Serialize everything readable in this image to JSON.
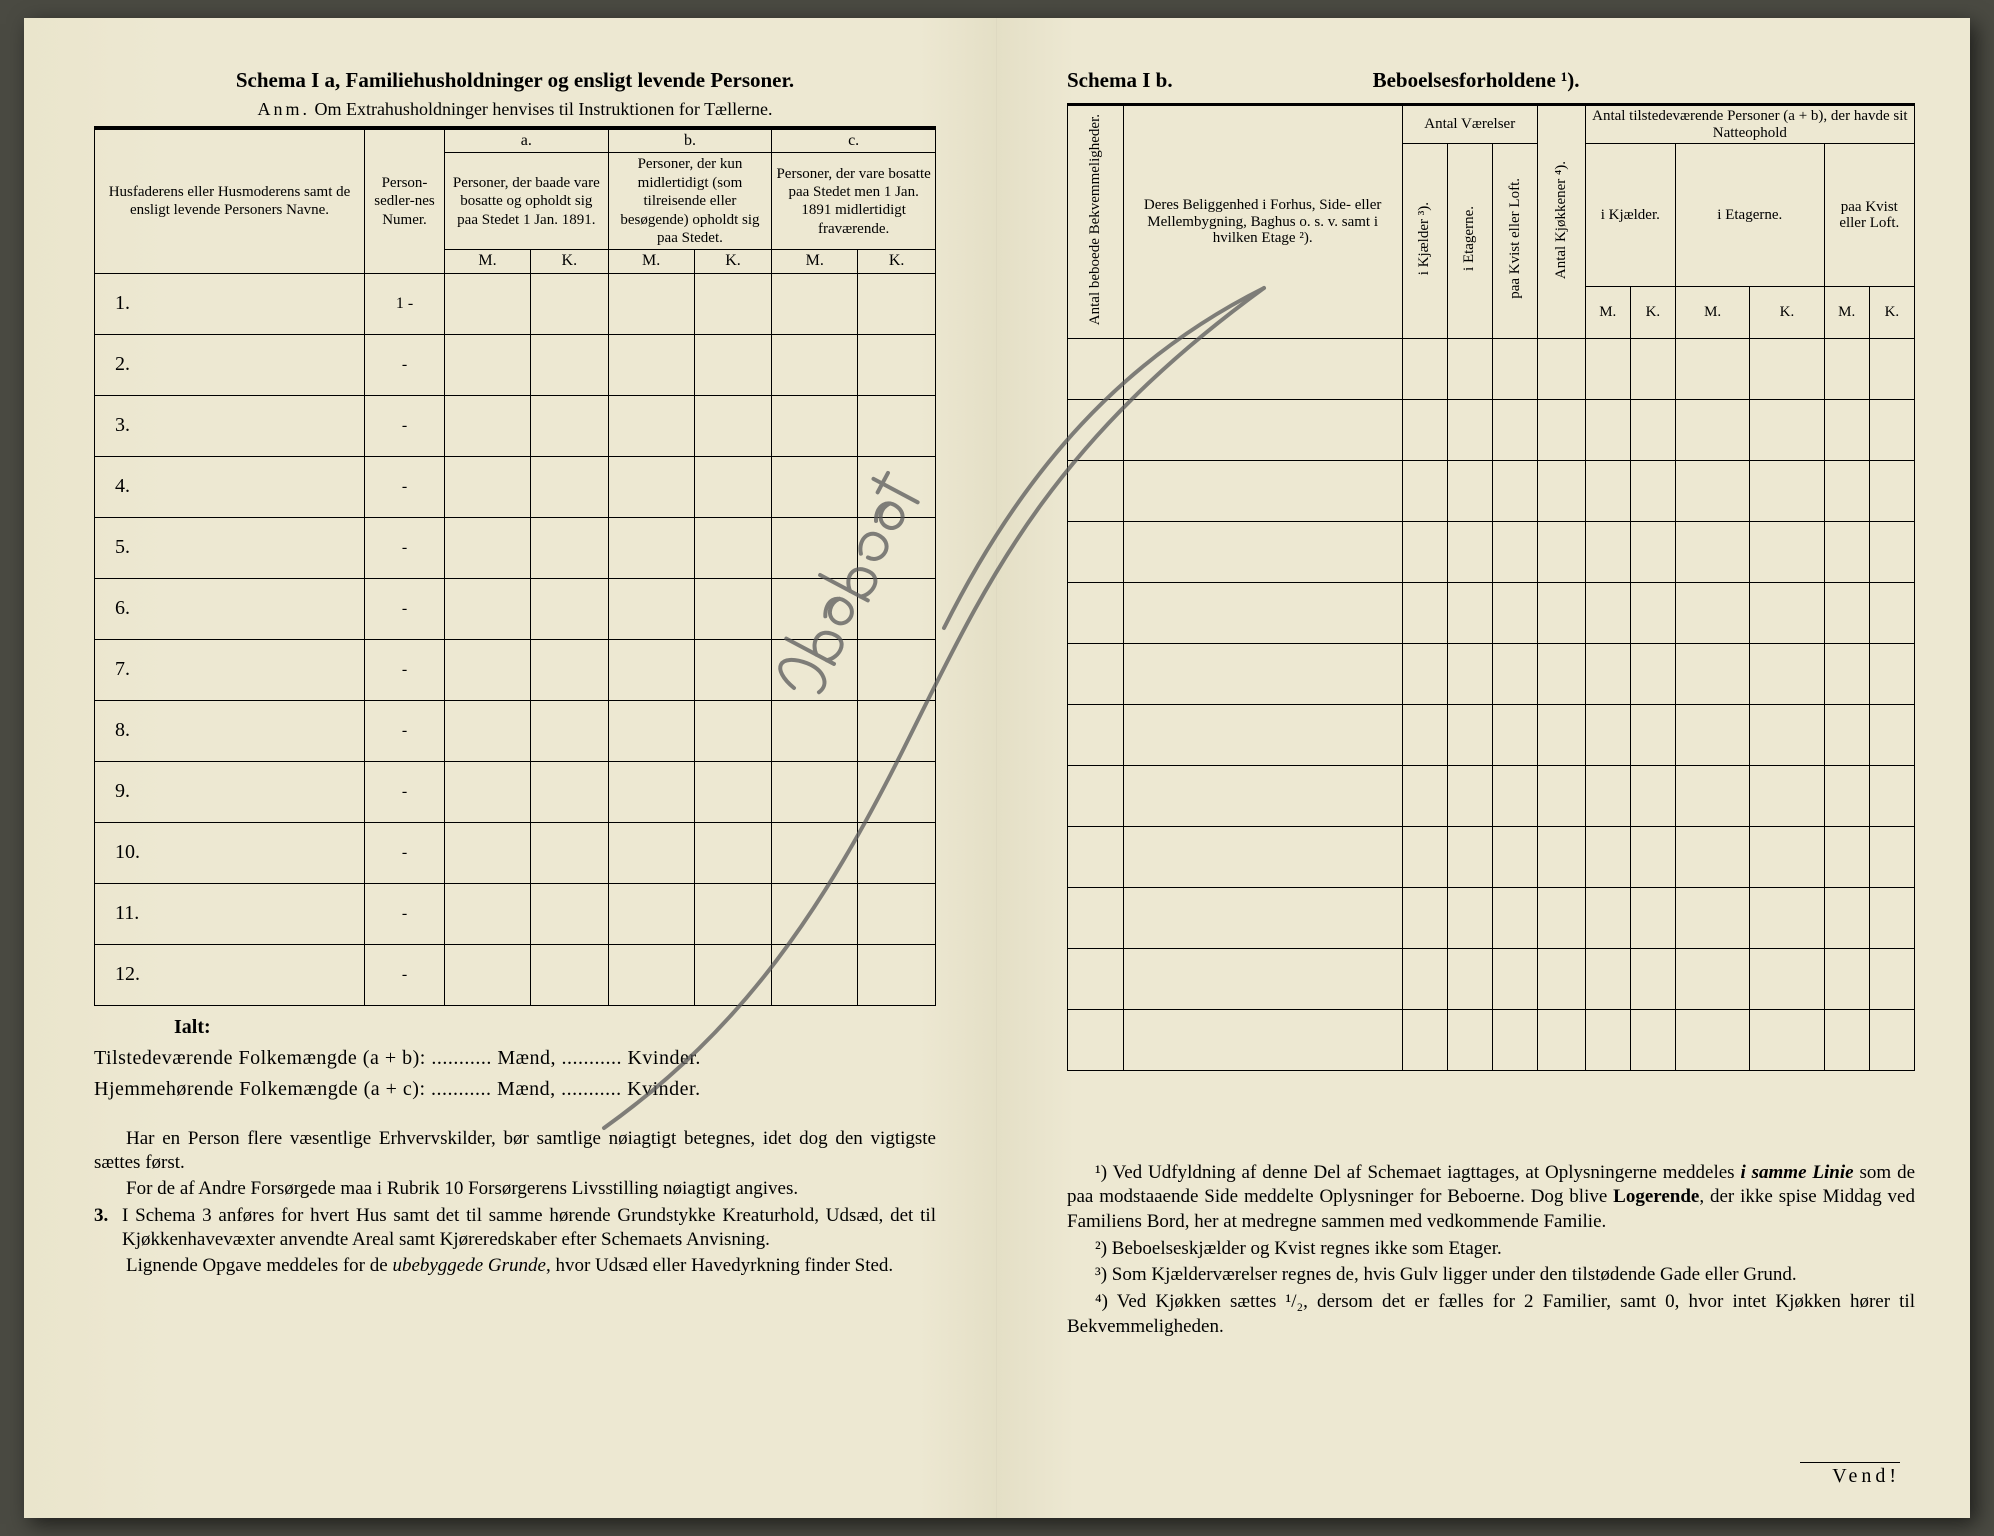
{
  "left": {
    "title_a": "Schema I a,",
    "title_b": "Familiehusholdninger og ensligt levende Personer.",
    "anm_label": "Anm.",
    "anm_text": "Om Extrahusholdninger henvises til Instruktionen for Tællerne.",
    "col_names": "Husfaderens eller Husmoderens samt de ensligt levende Personers Navne.",
    "col_personsedler": "Person-sedler-nes Numer.",
    "abc": {
      "a": "a.",
      "b": "b.",
      "c": "c."
    },
    "col_a": "Personer, der baade vare bosatte og opholdt sig paa Stedet 1 Jan. 1891.",
    "col_b": "Personer, der kun midlertidigt (som tilreisende eller besøgende) opholdt sig paa Stedet.",
    "col_c": "Personer, der vare bosatte paa Stedet men 1 Jan. 1891 midlertidigt fraværende.",
    "mk": {
      "m": "M.",
      "k": "K."
    },
    "rows": [
      "1.",
      "2.",
      "3.",
      "4.",
      "5.",
      "6.",
      "7.",
      "8.",
      "9.",
      "10.",
      "11.",
      "12."
    ],
    "personsedler_first": "1 -",
    "personsedler_rest": "-",
    "ialt": "Ialt:",
    "line1_a": "Tilstedeværende Folkemængde (a + b): ",
    "line1_b": " Mænd, ",
    "line1_c": " Kvinder.",
    "line2_a": "Hjemmehørende Folkemængde (a + c): ",
    "dots": "...........",
    "para1": "Har en Person flere væsentlige Erhvervskilder, bør samtlige nøiagtigt betegnes, idet dog den vigtigste sættes først.",
    "para2": "For de af Andre Forsørgede maa i Rubrik 10 Forsørgerens Livsstilling nøiagtigt angives.",
    "item3_num": "3.",
    "item3": "I Schema 3 anføres for hvert Hus samt det til samme hørende Grundstykke Kreaturhold, Udsæd, det til Kjøkkenhavevæxter anvendte Areal samt Kjøreredskaber efter Schemaets Anvisning.",
    "para4a": "Lignende Opgave meddeles for de ",
    "para4b": "ubebyggede Grunde",
    "para4c": ", hvor Udsæd eller Havedyrkning finder Sted."
  },
  "right": {
    "title_a": "Schema I b.",
    "title_b": "Beboelsesforholdene ¹).",
    "col_antal_beboede": "Antal beboede Bekvemmeligheder.",
    "col_beliggenhed": "Deres Beliggenhed i Forhus, Side- eller Mellembygning, Baghus o. s. v. samt i hvilken Etage ²).",
    "group_vaerelser": "Antal Værelser",
    "group_kjokken": "Antal Kjøkkener ⁴).",
    "group_natteophold_a": "Antal tilstedeværende Personer (a + b), der havde sit Natteophold",
    "v_kjaelder": "i Kjælder ³).",
    "v_etagerne": "i Etagerne.",
    "v_kvist": "paa Kvist eller Loft.",
    "n_kjaelder": "i Kjælder.",
    "n_etagerne": "i Etagerne.",
    "n_kvist": "paa Kvist eller Loft.",
    "mk": {
      "m": "M.",
      "k": "K."
    },
    "rows_count": 12,
    "fn1_a": "¹) Ved Udfyldning af denne Del af Schemaet iagttages, at Oplysningerne meddeles ",
    "fn1_b": "i samme Linie",
    "fn1_c": " som de paa modstaaende Side meddelte Oplysninger for Beboerne. Dog blive ",
    "fn1_d": "Logerende",
    "fn1_e": ", der ikke spise Middag ved Familiens Bord, her at medregne sammen med vedkommende Familie.",
    "fn2": "²) Beboelseskjælder og Kvist regnes ikke som Etager.",
    "fn3": "³) Som Kjælderværelser regnes de, hvis Gulv ligger under den tilstødende Gade eller Grund.",
    "fn4": "⁴) Ved Kjøkken sættes ¹/₂, dersom det er fælles for 2 Familier, samt 0, hvor intet Kjøkken hører til Bekvemmeligheden.",
    "vend": "Vend!"
  },
  "colors": {
    "paper": "#ede8d2",
    "ink": "#1a1a1a",
    "pencil": "#5a5a5a"
  }
}
